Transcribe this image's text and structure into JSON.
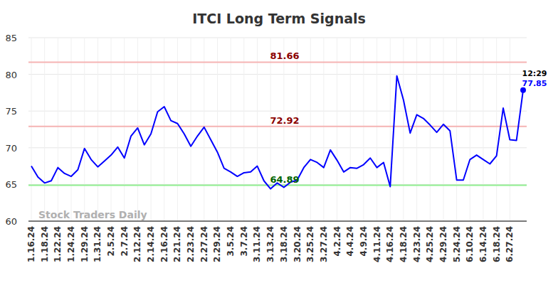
{
  "chart_data": {
    "type": "line",
    "title": "ITCI Long Term Signals",
    "watermark": "Stock Traders Daily",
    "time_label": "12:29",
    "color": "#0000ff",
    "grid": true,
    "ylim": [
      60,
      85
    ],
    "yticks": [
      60,
      65,
      70,
      75,
      80,
      85
    ],
    "categories": [
      "1.16.24",
      null,
      "1.18.24",
      null,
      "1.22.24",
      null,
      "1.24.24",
      null,
      "1.29.24",
      null,
      "1.31.24",
      null,
      "2.5.24",
      null,
      "2.7.24",
      null,
      "2.12.24",
      null,
      "2.14.24",
      null,
      "2.16.24",
      null,
      "2.21.24",
      null,
      "2.23.24",
      null,
      "2.27.24",
      null,
      "2.29.24",
      null,
      "3.5.24",
      null,
      "3.7.24",
      null,
      "3.11.24",
      null,
      "3.13.24",
      null,
      "3.18.24",
      null,
      "3.20.24",
      null,
      "3.25.24",
      null,
      "3.27.24",
      null,
      "4.2.24",
      null,
      "4.4.24",
      null,
      "4.9.24",
      null,
      "4.11.24",
      null,
      "4.16.24",
      null,
      "4.18.24",
      null,
      "4.23.24",
      null,
      "4.25.24",
      null,
      "4.29.24",
      null,
      "5.24.24",
      null,
      "6.10.24",
      null,
      "6.14.24",
      null,
      "6.18.24",
      null,
      "6.27.24",
      null,
      null
    ],
    "values": [
      67.5,
      66.0,
      65.2,
      65.5,
      67.3,
      66.5,
      66.1,
      67.0,
      69.9,
      68.4,
      67.4,
      68.2,
      69.0,
      70.1,
      68.6,
      71.6,
      72.7,
      70.4,
      71.9,
      74.9,
      75.6,
      73.7,
      73.3,
      71.9,
      70.2,
      71.6,
      72.8,
      71.1,
      69.4,
      67.2,
      66.7,
      66.1,
      66.6,
      66.7,
      67.5,
      65.5,
      64.4,
      65.2,
      64.6,
      65.3,
      65.6,
      67.3,
      68.4,
      68.0,
      67.3,
      69.7,
      68.3,
      66.7,
      67.3,
      67.2,
      67.7,
      68.6,
      67.3,
      68.0,
      64.7,
      79.8,
      76.5,
      72.0,
      74.5,
      74.0,
      73.1,
      72.1,
      73.2,
      72.3,
      65.6,
      65.6,
      68.4,
      69.0,
      68.4,
      67.8,
      68.9,
      75.4,
      71.1,
      71.0,
      77.85
    ],
    "reference_lines": [
      {
        "value": 81.66,
        "color": "#f5b3b3",
        "text_color": "#8b0000"
      },
      {
        "value": 72.92,
        "color": "#f5b3b3",
        "text_color": "#8b0000"
      },
      {
        "value": 64.89,
        "color": "#90ee90",
        "text_color": "#006400"
      }
    ]
  }
}
